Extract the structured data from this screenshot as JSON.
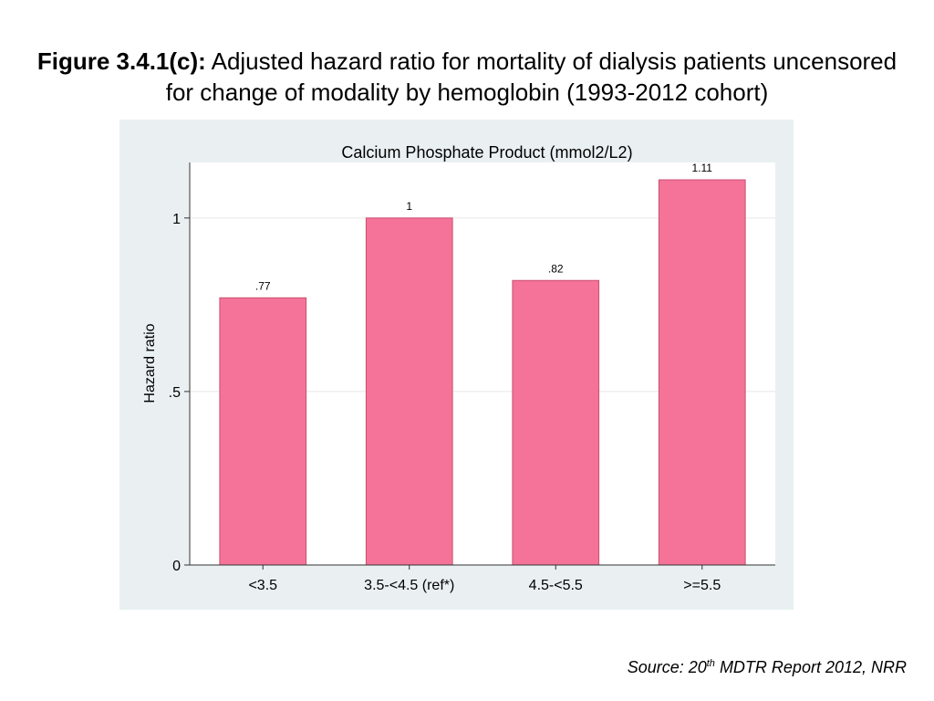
{
  "figure": {
    "title_bold": "Figure 3.4.1(c):",
    "title_rest": " Adjusted hazard ratio for mortality of dialysis patients uncensored for change of modality by hemoglobin (1993-2012 cohort)"
  },
  "source": {
    "prefix": "Source: 20",
    "superscript": "th",
    "suffix": " MDTR Report 2012, NRR"
  },
  "colors": {
    "bar_fill": "#f57299",
    "bar_stroke": "#c9506f",
    "plot_background": "#eaf0f2",
    "axis": "#333333",
    "grid": "#e6e6e6"
  },
  "chart_data": {
    "type": "bar",
    "title": "Calcium Phosphate Product (mmol2/L2)",
    "xlabel": "",
    "ylabel": "Hazard ratio",
    "categories": [
      "<3.5",
      "3.5-<4.5 (ref*)",
      "4.5-<5.5",
      ">=5.5"
    ],
    "values": [
      0.77,
      1,
      0.82,
      1.11
    ],
    "value_labels": [
      ".77",
      "1",
      ".82",
      "1.11"
    ],
    "yticks": [
      0,
      0.5,
      1
    ],
    "ytick_labels": [
      "0",
      ".5",
      "1"
    ],
    "ylim": [
      0,
      1.16
    ],
    "grid": true,
    "legend": false
  }
}
